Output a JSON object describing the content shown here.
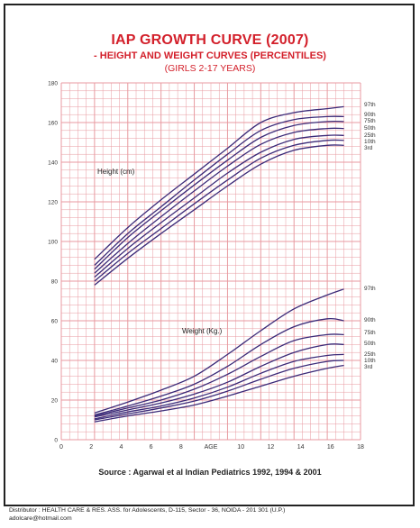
{
  "header": {
    "title": "IAP GROWTH CURVE (2007)",
    "subtitle": "- HEIGHT AND WEIGHT CURVES (PERCENTILES)",
    "subtitle2": "(GIRLS 2-17 YEARS)"
  },
  "colors": {
    "grid": "#e89aa0",
    "title": "#d3202b",
    "curve": "#3b2a78",
    "label": "#333333"
  },
  "chart_data": {
    "type": "line",
    "title": "IAP GROWTH CURVE (2007)",
    "xlabel": "AGE",
    "xlim": [
      0,
      18
    ],
    "ylim": [
      0,
      180
    ],
    "x_ticks": [
      "0",
      "2",
      "4",
      "6",
      "8",
      "AGE",
      "10",
      "12",
      "14",
      "16",
      "18"
    ],
    "y_ticks": [
      "0",
      "20",
      "40",
      "60",
      "80",
      "100",
      "120",
      "140",
      "160",
      "180"
    ],
    "grid": true,
    "height_label": "Height (cm)",
    "weight_label": "Weight (Kg.)",
    "x": [
      2,
      4,
      6,
      8,
      10,
      12,
      14,
      16,
      17
    ],
    "height_series": [
      {
        "name": "97th",
        "values": [
          91,
          107,
          121,
          134,
          147,
          160,
          165,
          167,
          168
        ]
      },
      {
        "name": "90th",
        "values": [
          88,
          104,
          117.5,
          131,
          144,
          156,
          161.5,
          163,
          163
        ]
      },
      {
        "name": "75th",
        "values": [
          86,
          102,
          115.5,
          128.5,
          141,
          152.5,
          158.5,
          160.5,
          160.5
        ]
      },
      {
        "name": "50th",
        "values": [
          84,
          99,
          112.5,
          125.5,
          138,
          149,
          155,
          157,
          157
        ]
      },
      {
        "name": "25th",
        "values": [
          82,
          96.5,
          109.5,
          122,
          134.5,
          145,
          151.5,
          153.5,
          153.5
        ]
      },
      {
        "name": "10th",
        "values": [
          80,
          94,
          106.5,
          119,
          131,
          142,
          148.5,
          151,
          151
        ]
      },
      {
        "name": "3rd",
        "values": [
          78,
          91.5,
          104,
          116,
          128,
          139,
          146,
          148.5,
          148.5
        ]
      }
    ],
    "weight_series": [
      {
        "name": "97th",
        "values": [
          13.5,
          19,
          25,
          32,
          43,
          55,
          66,
          73,
          76
        ]
      },
      {
        "name": "90th",
        "values": [
          12.5,
          17,
          22,
          28,
          37,
          48,
          57,
          61,
          60
        ]
      },
      {
        "name": "75th",
        "values": [
          12,
          16,
          20,
          25.5,
          33,
          42,
          50,
          53,
          53
        ]
      },
      {
        "name": "50th",
        "values": [
          11.5,
          15,
          18.5,
          23,
          29,
          37,
          44,
          48,
          48
        ]
      },
      {
        "name": "25th",
        "values": [
          10.5,
          14,
          17,
          21,
          26.5,
          33.5,
          39.5,
          42.5,
          43
        ]
      },
      {
        "name": "10th",
        "values": [
          10,
          13,
          16,
          19.5,
          24.5,
          30.5,
          36,
          39.5,
          40
        ]
      },
      {
        "name": "3rd",
        "values": [
          9,
          12,
          14.5,
          17.5,
          22,
          27,
          32,
          36,
          37.5
        ]
      }
    ]
  },
  "source": "Source : Agarwal et al Indian Pediatrics 1992, 1994 & 2001",
  "footer": {
    "distributor": "Distributor : HEALTH CARE & RES. ASS. for Adolescents,   D-115, Sector - 36, NOIDA - 201 301 (U.P.)",
    "email": "adolcare@hotmail.com"
  }
}
